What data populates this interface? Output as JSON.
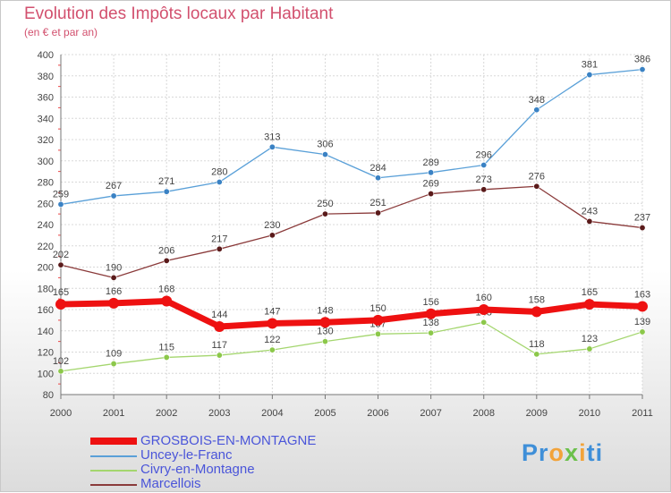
{
  "title": "Evolution des Impôts locaux par Habitant",
  "subtitle": "(en € et par an)",
  "logo": {
    "parts": [
      "Pr",
      "o",
      "x",
      "i",
      "ti"
    ]
  },
  "chart_data": {
    "type": "line",
    "x": [
      "2000",
      "2001",
      "2002",
      "2003",
      "2004",
      "2005",
      "2006",
      "2007",
      "2008",
      "2009",
      "2010",
      "2011"
    ],
    "ylim": [
      80,
      400
    ],
    "yticks": [
      80,
      100,
      120,
      140,
      160,
      180,
      200,
      220,
      240,
      260,
      280,
      300,
      320,
      340,
      360,
      380,
      400
    ],
    "grid": true,
    "legend_position": "bottom-left",
    "series": [
      {
        "name": "Uncey-le-Franc",
        "color": "#5aa0d8",
        "marker": "#3a82c4",
        "values": [
          259,
          267,
          271,
          280,
          313,
          306,
          284,
          289,
          296,
          348,
          381,
          386
        ]
      },
      {
        "name": "Marcellois",
        "color": "#8a3a3a",
        "marker": "#5a1a1a",
        "values": [
          202,
          190,
          206,
          217,
          230,
          250,
          251,
          269,
          273,
          276,
          243,
          237
        ]
      },
      {
        "name": "Civry-en-Montagne",
        "color": "#a4d66e",
        "marker": "#8cc84a",
        "values": [
          102,
          109,
          115,
          117,
          122,
          130,
          137,
          138,
          148,
          118,
          123,
          139
        ]
      },
      {
        "name": "GROSBOIS-EN-MONTAGNE",
        "color": "#ee1111",
        "marker": "#ee1111",
        "values": [
          165,
          166,
          168,
          144,
          147,
          148,
          150,
          156,
          160,
          158,
          165,
          163
        ]
      }
    ],
    "legend_order": [
      "GROSBOIS-EN-MONTAGNE",
      "Uncey-le-Franc",
      "Civry-en-Montagne",
      "Marcellois"
    ]
  }
}
